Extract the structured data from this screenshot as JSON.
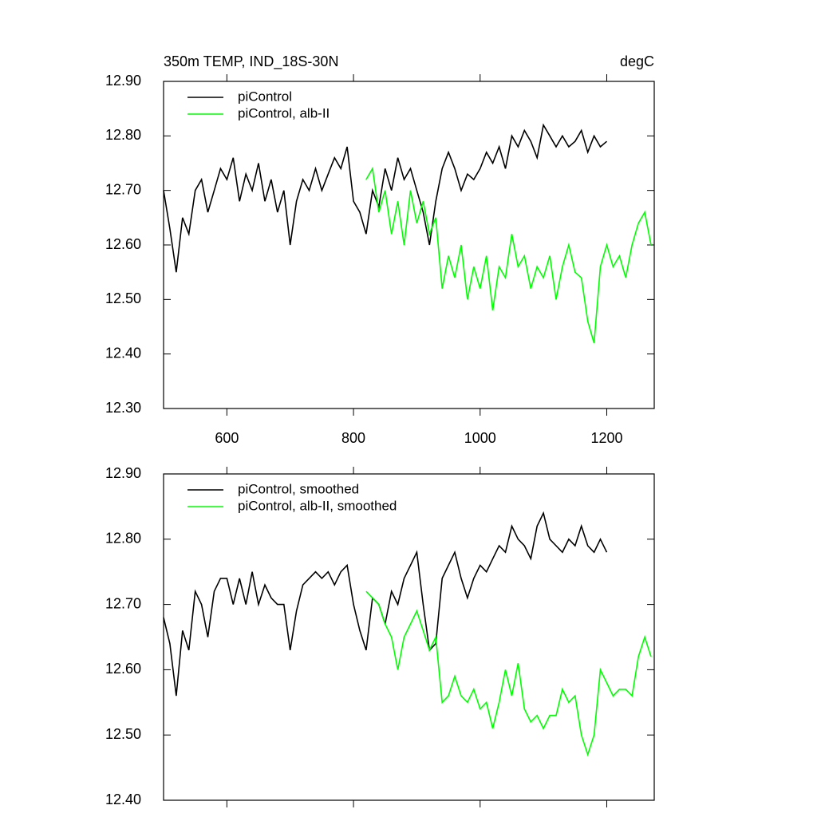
{
  "chart_data": [
    {
      "type": "line",
      "title": "350m TEMP, IND_18S-30N",
      "unit_label": "degC",
      "xlim": [
        500,
        1275
      ],
      "xticks": [
        600,
        800,
        1000,
        1200
      ],
      "xtick_labels": true,
      "ylim": [
        12.3,
        12.9
      ],
      "yticks": [
        {
          "value": 12.3,
          "label": "12.30"
        },
        {
          "value": 12.4,
          "label": "12.40"
        },
        {
          "value": 12.5,
          "label": "12.50"
        },
        {
          "value": 12.6,
          "label": "12.60"
        },
        {
          "value": 12.7,
          "label": "12.70"
        },
        {
          "value": 12.8,
          "label": "12.80"
        },
        {
          "value": 12.9,
          "label": "12.90"
        }
      ],
      "legend": "top-left",
      "series": [
        {
          "name": "piControl",
          "color": "#000000",
          "x": [
            500,
            510,
            520,
            530,
            540,
            550,
            560,
            570,
            580,
            590,
            600,
            610,
            620,
            630,
            640,
            650,
            660,
            670,
            680,
            690,
            700,
            710,
            720,
            730,
            740,
            750,
            760,
            770,
            780,
            790,
            800,
            810,
            820,
            830,
            840,
            850,
            860,
            870,
            880,
            890,
            900,
            910,
            920,
            930,
            940,
            950,
            960,
            970,
            980,
            990,
            1000,
            1010,
            1020,
            1030,
            1040,
            1050,
            1060,
            1070,
            1080,
            1090,
            1100,
            1110,
            1120,
            1130,
            1140,
            1150,
            1160,
            1170,
            1180,
            1190,
            1200
          ],
          "values": [
            12.7,
            12.63,
            12.55,
            12.65,
            12.62,
            12.7,
            12.72,
            12.66,
            12.7,
            12.74,
            12.72,
            12.76,
            12.68,
            12.73,
            12.7,
            12.75,
            12.68,
            12.72,
            12.66,
            12.7,
            12.6,
            12.68,
            12.72,
            12.7,
            12.74,
            12.7,
            12.73,
            12.76,
            12.74,
            12.78,
            12.68,
            12.66,
            12.62,
            12.7,
            12.67,
            12.74,
            12.7,
            12.76,
            12.72,
            12.74,
            12.7,
            12.66,
            12.6,
            12.68,
            12.74,
            12.77,
            12.74,
            12.7,
            12.73,
            12.72,
            12.74,
            12.77,
            12.75,
            12.78,
            12.74,
            12.8,
            12.78,
            12.81,
            12.79,
            12.76,
            12.82,
            12.8,
            12.78,
            12.8,
            12.78,
            12.79,
            12.81,
            12.77,
            12.8,
            12.78,
            12.79
          ]
        },
        {
          "name": "piControl, alb-II",
          "color": "#00ff00",
          "x": [
            820,
            830,
            840,
            850,
            860,
            870,
            880,
            890,
            900,
            910,
            920,
            930,
            940,
            950,
            960,
            970,
            980,
            990,
            1000,
            1010,
            1020,
            1030,
            1040,
            1050,
            1060,
            1070,
            1080,
            1090,
            1100,
            1110,
            1120,
            1130,
            1140,
            1150,
            1160,
            1170,
            1180,
            1190,
            1200,
            1210,
            1220,
            1230,
            1240,
            1250,
            1260,
            1270
          ],
          "values": [
            12.72,
            12.74,
            12.66,
            12.7,
            12.62,
            12.68,
            12.6,
            12.7,
            12.64,
            12.68,
            12.62,
            12.65,
            12.52,
            12.58,
            12.54,
            12.6,
            12.5,
            12.56,
            12.52,
            12.58,
            12.48,
            12.56,
            12.54,
            12.62,
            12.56,
            12.58,
            12.52,
            12.56,
            12.54,
            12.58,
            12.5,
            12.56,
            12.6,
            12.55,
            12.54,
            12.46,
            12.42,
            12.56,
            12.6,
            12.56,
            12.58,
            12.54,
            12.6,
            12.64,
            12.66,
            12.6
          ]
        }
      ]
    },
    {
      "type": "line",
      "xlim": [
        500,
        1275
      ],
      "xticks": [
        600,
        800,
        1000,
        1200
      ],
      "xtick_labels": false,
      "ylim": [
        12.4,
        12.9
      ],
      "yticks": [
        {
          "value": 12.4,
          "label": "12.40"
        },
        {
          "value": 12.5,
          "label": "12.50"
        },
        {
          "value": 12.6,
          "label": "12.60"
        },
        {
          "value": 12.7,
          "label": "12.70"
        },
        {
          "value": 12.8,
          "label": "12.80"
        },
        {
          "value": 12.9,
          "label": "12.90"
        }
      ],
      "legend": "top-left",
      "series": [
        {
          "name": "piControl, smoothed",
          "color": "#000000",
          "x": [
            500,
            510,
            520,
            530,
            540,
            550,
            560,
            570,
            580,
            590,
            600,
            610,
            620,
            630,
            640,
            650,
            660,
            670,
            680,
            690,
            700,
            710,
            720,
            730,
            740,
            750,
            760,
            770,
            780,
            790,
            800,
            810,
            820,
            830,
            840,
            850,
            860,
            870,
            880,
            890,
            900,
            910,
            920,
            930,
            940,
            950,
            960,
            970,
            980,
            990,
            1000,
            1010,
            1020,
            1030,
            1040,
            1050,
            1060,
            1070,
            1080,
            1090,
            1100,
            1110,
            1120,
            1130,
            1140,
            1150,
            1160,
            1170,
            1180,
            1190,
            1200
          ],
          "values": [
            12.68,
            12.64,
            12.56,
            12.66,
            12.63,
            12.72,
            12.7,
            12.65,
            12.72,
            12.74,
            12.74,
            12.7,
            12.74,
            12.7,
            12.75,
            12.7,
            12.73,
            12.71,
            12.7,
            12.7,
            12.63,
            12.69,
            12.73,
            12.74,
            12.75,
            12.74,
            12.75,
            12.73,
            12.75,
            12.76,
            12.7,
            12.66,
            12.63,
            12.71,
            12.7,
            12.67,
            12.72,
            12.7,
            12.74,
            12.76,
            12.78,
            12.7,
            12.63,
            12.64,
            12.74,
            12.76,
            12.78,
            12.74,
            12.71,
            12.74,
            12.76,
            12.75,
            12.77,
            12.79,
            12.78,
            12.82,
            12.8,
            12.79,
            12.77,
            12.82,
            12.84,
            12.8,
            12.79,
            12.78,
            12.8,
            12.79,
            12.82,
            12.79,
            12.78,
            12.8,
            12.78
          ]
        },
        {
          "name": "piControl, alb-II, smoothed",
          "color": "#00ff00",
          "x": [
            820,
            830,
            840,
            850,
            860,
            870,
            880,
            890,
            900,
            910,
            920,
            930,
            940,
            950,
            960,
            970,
            980,
            990,
            1000,
            1010,
            1020,
            1030,
            1040,
            1050,
            1060,
            1070,
            1080,
            1090,
            1100,
            1110,
            1120,
            1130,
            1140,
            1150,
            1160,
            1170,
            1180,
            1190,
            1200,
            1210,
            1220,
            1230,
            1240,
            1250,
            1260,
            1270
          ],
          "values": [
            12.72,
            12.71,
            12.7,
            12.67,
            12.65,
            12.6,
            12.65,
            12.67,
            12.69,
            12.66,
            12.63,
            12.65,
            12.55,
            12.56,
            12.59,
            12.56,
            12.55,
            12.57,
            12.54,
            12.55,
            12.51,
            12.55,
            12.6,
            12.56,
            12.61,
            12.54,
            12.52,
            12.53,
            12.51,
            12.53,
            12.53,
            12.57,
            12.55,
            12.56,
            12.5,
            12.47,
            12.5,
            12.6,
            12.58,
            12.56,
            12.57,
            12.57,
            12.56,
            12.62,
            12.65,
            12.62
          ]
        }
      ]
    }
  ]
}
